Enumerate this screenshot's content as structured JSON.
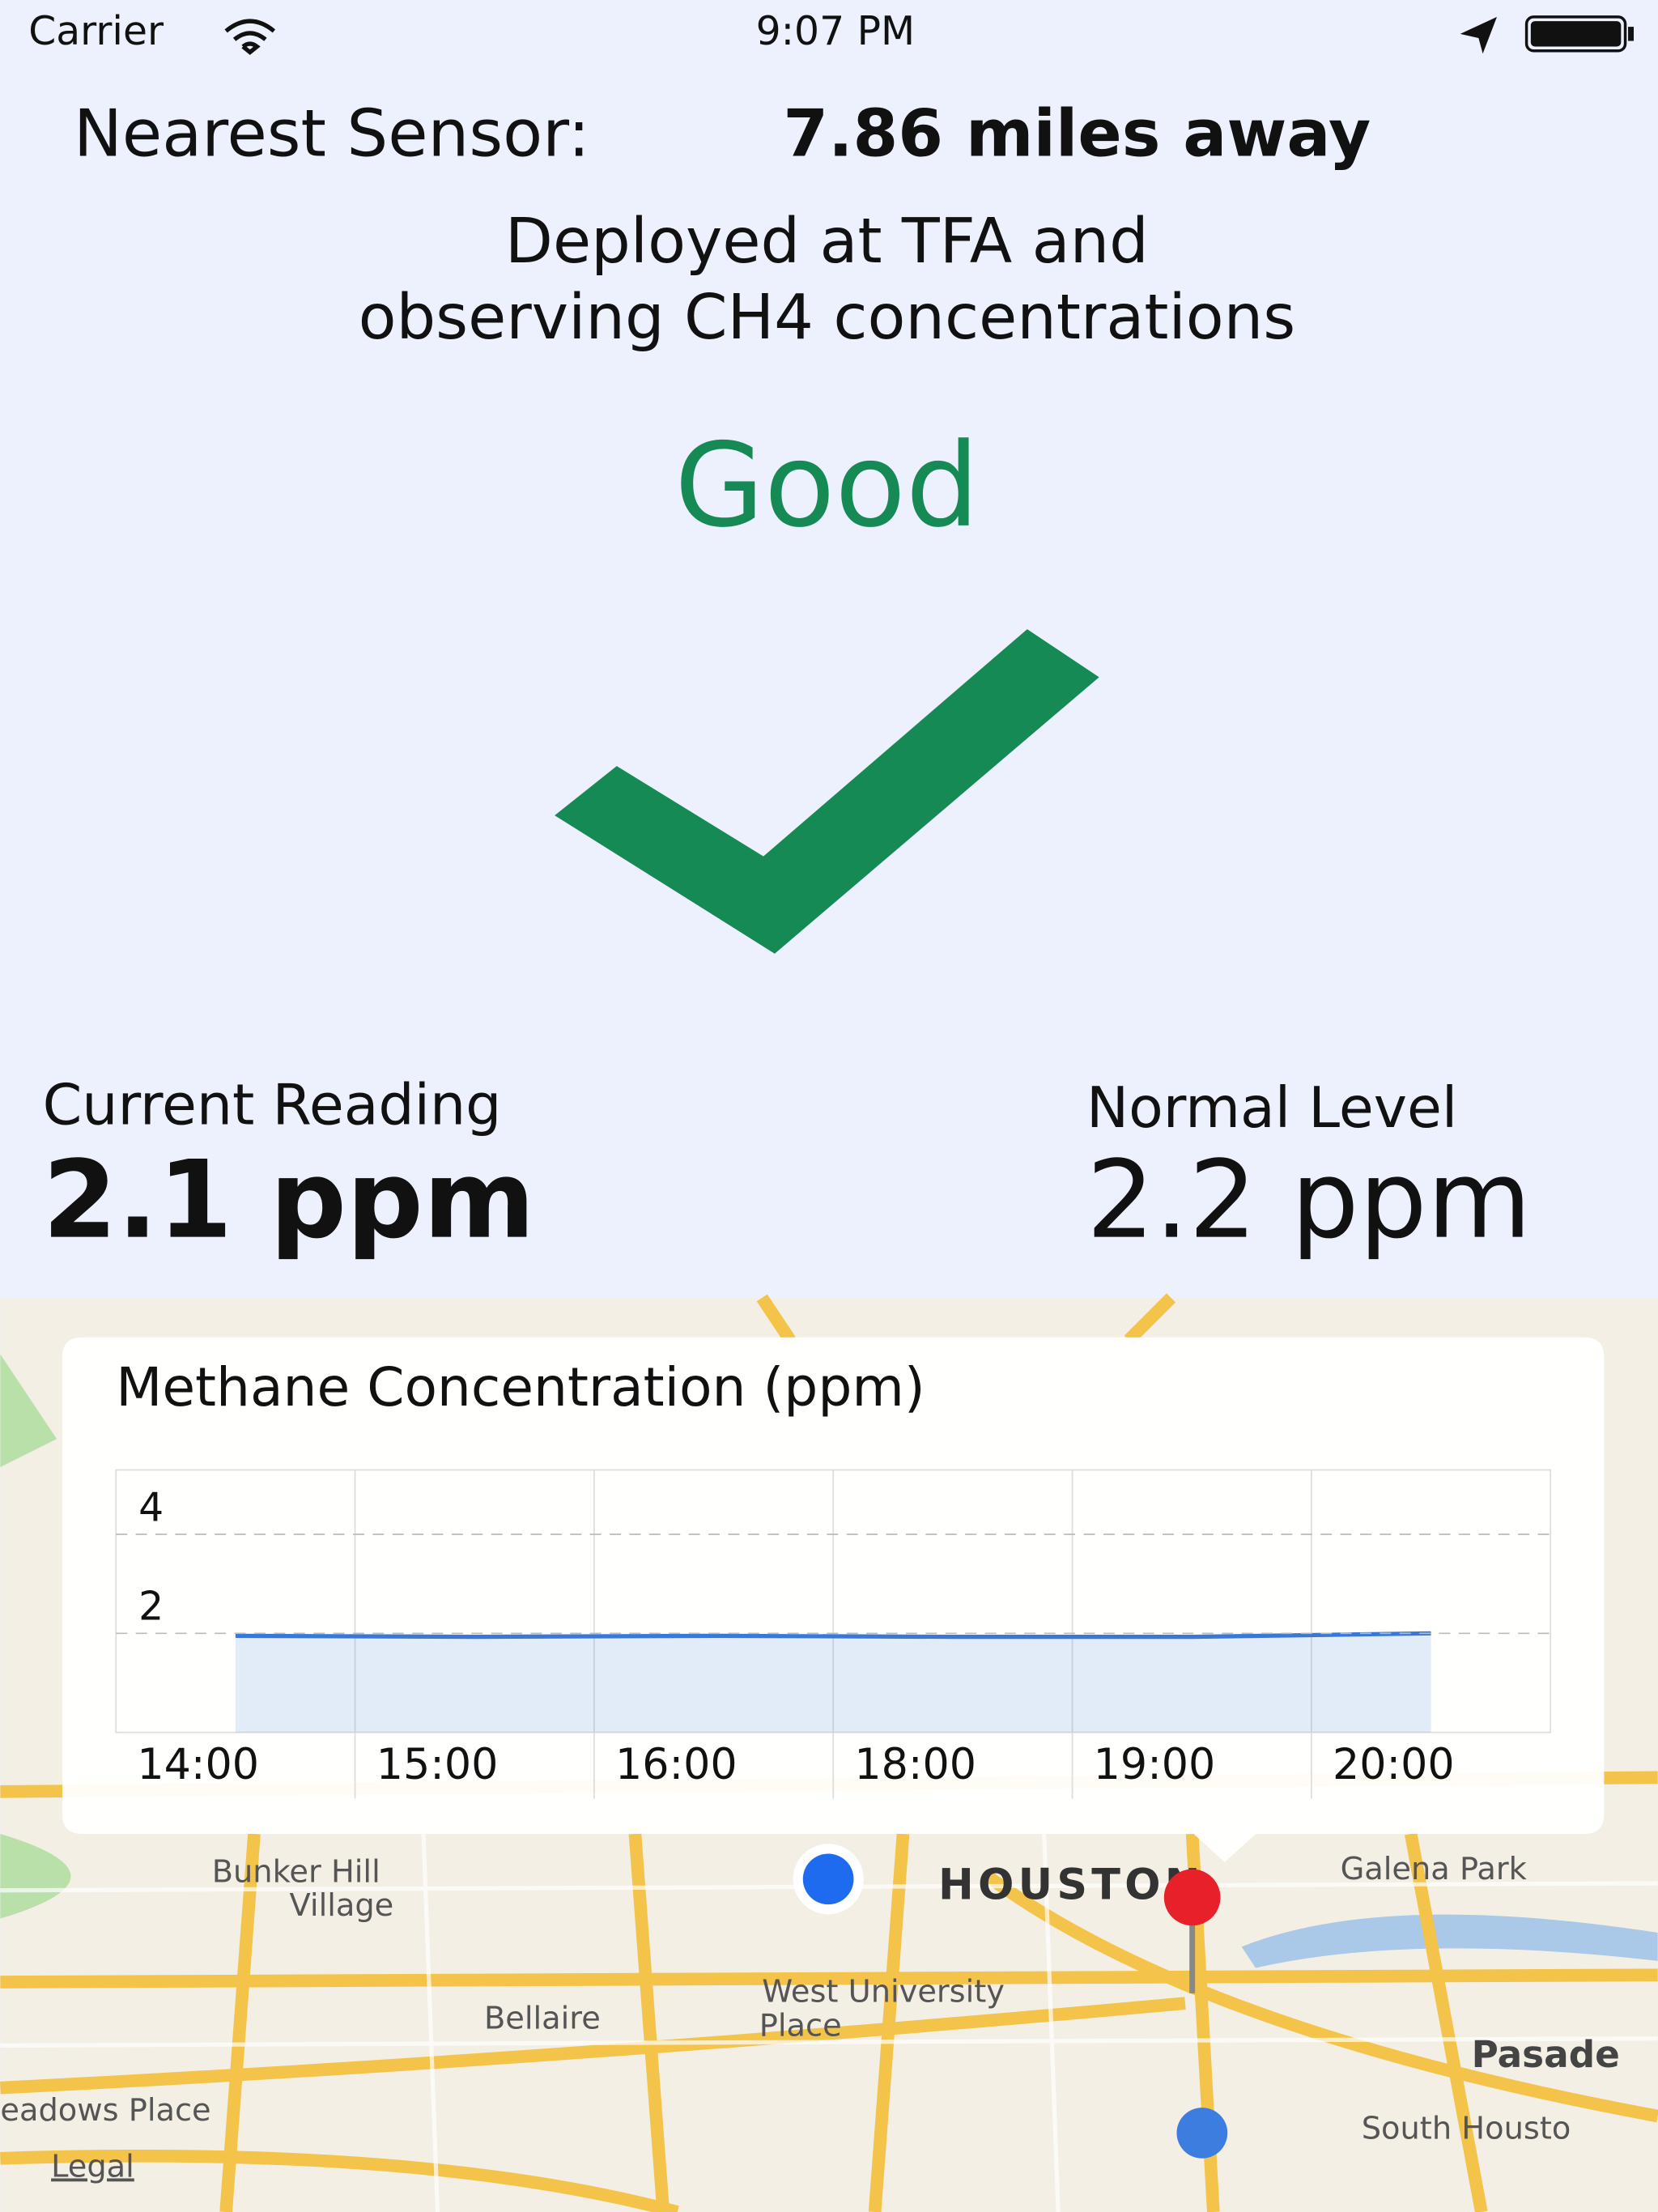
{
  "status_bar": {
    "carrier": "Carrier",
    "time": "9:07 PM"
  },
  "header": {
    "label": "Nearest Sensor:",
    "distance": "7.86 miles away",
    "description_lines": [
      "Deployed at TFA and",
      "observing CH4 concentrations"
    ]
  },
  "status": "Good",
  "readings": {
    "current_label": "Current Reading",
    "current_value": "2.1 ppm",
    "normal_label": "Normal Level",
    "normal_value": "2.2 ppm"
  },
  "chart_data": {
    "type": "line",
    "title": "Methane Concentration (ppm)",
    "categories": [
      "14:00",
      "15:00",
      "16:00",
      "18:00",
      "19:00",
      "20:00"
    ],
    "series": [
      {
        "color": "#3a78d8",
        "values": [
          1.95,
          1.93,
          1.95,
          1.93,
          1.93,
          2.0
        ]
      }
    ],
    "ylim": [
      0,
      5.3
    ],
    "yticks": [
      2,
      4
    ],
    "grid": true
  },
  "map": {
    "labels": [
      "Bunker Hill",
      "Village",
      "HOUSTON",
      "Galena Park",
      "West University",
      "Place",
      "Bellaire",
      "Pasade",
      "South Housto",
      "eadows Place"
    ],
    "legal": "Legal"
  }
}
